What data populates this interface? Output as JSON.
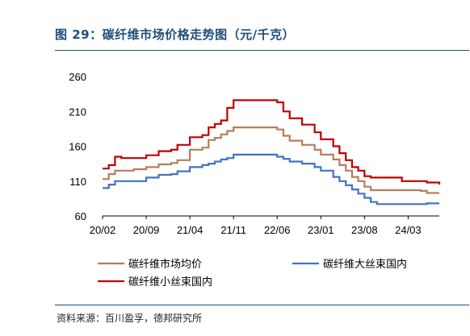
{
  "title": "图 29：碳纤维市场价格走势图（元/千克）",
  "source": "资料来源：百川盈孚，德邦研究所",
  "colors": {
    "market_avg": "#b47e5a",
    "large_tow": "#4472c4",
    "small_tow": "#c00000",
    "title": "#1f4e79"
  },
  "chart_data": {
    "type": "line",
    "title": "",
    "xlabel": "",
    "ylabel": "",
    "ylim": [
      60,
      260
    ],
    "y_ticks": [
      60,
      110,
      160,
      210,
      260
    ],
    "x_tick_labels": [
      "20/02",
      "20/09",
      "21/04",
      "21/11",
      "22/06",
      "23/01",
      "23/08",
      "24/03"
    ],
    "x_range": [
      "2020-02",
      "2024-08"
    ],
    "grid": false,
    "legend_position": "bottom",
    "series": [
      {
        "name": "碳纤维市场均价",
        "color": "#b47e5a",
        "points": [
          [
            "2020-02",
            113
          ],
          [
            "2020-03",
            120
          ],
          [
            "2020-04",
            125
          ],
          [
            "2020-07",
            127
          ],
          [
            "2020-09",
            130
          ],
          [
            "2020-11",
            134
          ],
          [
            "2021-01",
            136
          ],
          [
            "2021-02",
            140
          ],
          [
            "2021-04",
            155
          ],
          [
            "2021-06",
            158
          ],
          [
            "2021-07",
            169
          ],
          [
            "2021-08",
            172
          ],
          [
            "2021-09",
            177
          ],
          [
            "2021-10",
            182
          ],
          [
            "2021-11",
            187
          ],
          [
            "2022-06",
            184
          ],
          [
            "2022-07",
            175
          ],
          [
            "2022-08",
            168
          ],
          [
            "2022-10",
            162
          ],
          [
            "2022-12",
            155
          ],
          [
            "2023-01",
            148
          ],
          [
            "2023-03",
            141
          ],
          [
            "2023-04",
            133
          ],
          [
            "2023-05",
            125
          ],
          [
            "2023-06",
            116
          ],
          [
            "2023-07",
            110
          ],
          [
            "2023-08",
            102
          ],
          [
            "2023-09",
            97
          ],
          [
            "2024-05",
            96
          ],
          [
            "2024-06",
            93
          ],
          [
            "2024-08",
            93
          ]
        ]
      },
      {
        "name": "碳纤维大丝束国内",
        "color": "#4472c4",
        "points": [
          [
            "2020-02",
            100
          ],
          [
            "2020-03",
            105
          ],
          [
            "2020-04",
            110
          ],
          [
            "2020-07",
            110
          ],
          [
            "2020-09",
            115
          ],
          [
            "2020-11",
            119
          ],
          [
            "2021-01",
            120
          ],
          [
            "2021-02",
            124
          ],
          [
            "2021-04",
            130
          ],
          [
            "2021-06",
            133
          ],
          [
            "2021-07",
            135
          ],
          [
            "2021-08",
            138
          ],
          [
            "2021-09",
            141
          ],
          [
            "2021-10",
            143
          ],
          [
            "2021-11",
            148
          ],
          [
            "2022-06",
            145
          ],
          [
            "2022-07",
            142
          ],
          [
            "2022-08",
            138
          ],
          [
            "2022-10",
            135
          ],
          [
            "2022-12",
            130
          ],
          [
            "2023-01",
            125
          ],
          [
            "2023-03",
            116
          ],
          [
            "2023-04",
            110
          ],
          [
            "2023-05",
            104
          ],
          [
            "2023-06",
            98
          ],
          [
            "2023-07",
            92
          ],
          [
            "2023-08",
            86
          ],
          [
            "2023-09",
            80
          ],
          [
            "2023-10",
            77
          ],
          [
            "2024-05",
            77
          ],
          [
            "2024-06",
            78
          ],
          [
            "2024-08",
            78
          ]
        ]
      },
      {
        "name": "碳纤维小丝束国内",
        "color": "#c00000",
        "points": [
          [
            "2020-02",
            128
          ],
          [
            "2020-03",
            133
          ],
          [
            "2020-04",
            145
          ],
          [
            "2020-05",
            143
          ],
          [
            "2020-09",
            147
          ],
          [
            "2020-11",
            153
          ],
          [
            "2021-01",
            155
          ],
          [
            "2021-02",
            162
          ],
          [
            "2021-04",
            173
          ],
          [
            "2021-06",
            176
          ],
          [
            "2021-07",
            187
          ],
          [
            "2021-08",
            192
          ],
          [
            "2021-09",
            197
          ],
          [
            "2021-10",
            215
          ],
          [
            "2021-11",
            226
          ],
          [
            "2022-06",
            223
          ],
          [
            "2022-07",
            210
          ],
          [
            "2022-08",
            200
          ],
          [
            "2022-10",
            191
          ],
          [
            "2022-12",
            180
          ],
          [
            "2023-01",
            170
          ],
          [
            "2023-03",
            160
          ],
          [
            "2023-04",
            150
          ],
          [
            "2023-05",
            140
          ],
          [
            "2023-06",
            130
          ],
          [
            "2023-07",
            125
          ],
          [
            "2023-08",
            117
          ],
          [
            "2023-09",
            115
          ],
          [
            "2024-01",
            115
          ],
          [
            "2024-02",
            110
          ],
          [
            "2024-06",
            108
          ],
          [
            "2024-08",
            105
          ]
        ]
      }
    ]
  }
}
